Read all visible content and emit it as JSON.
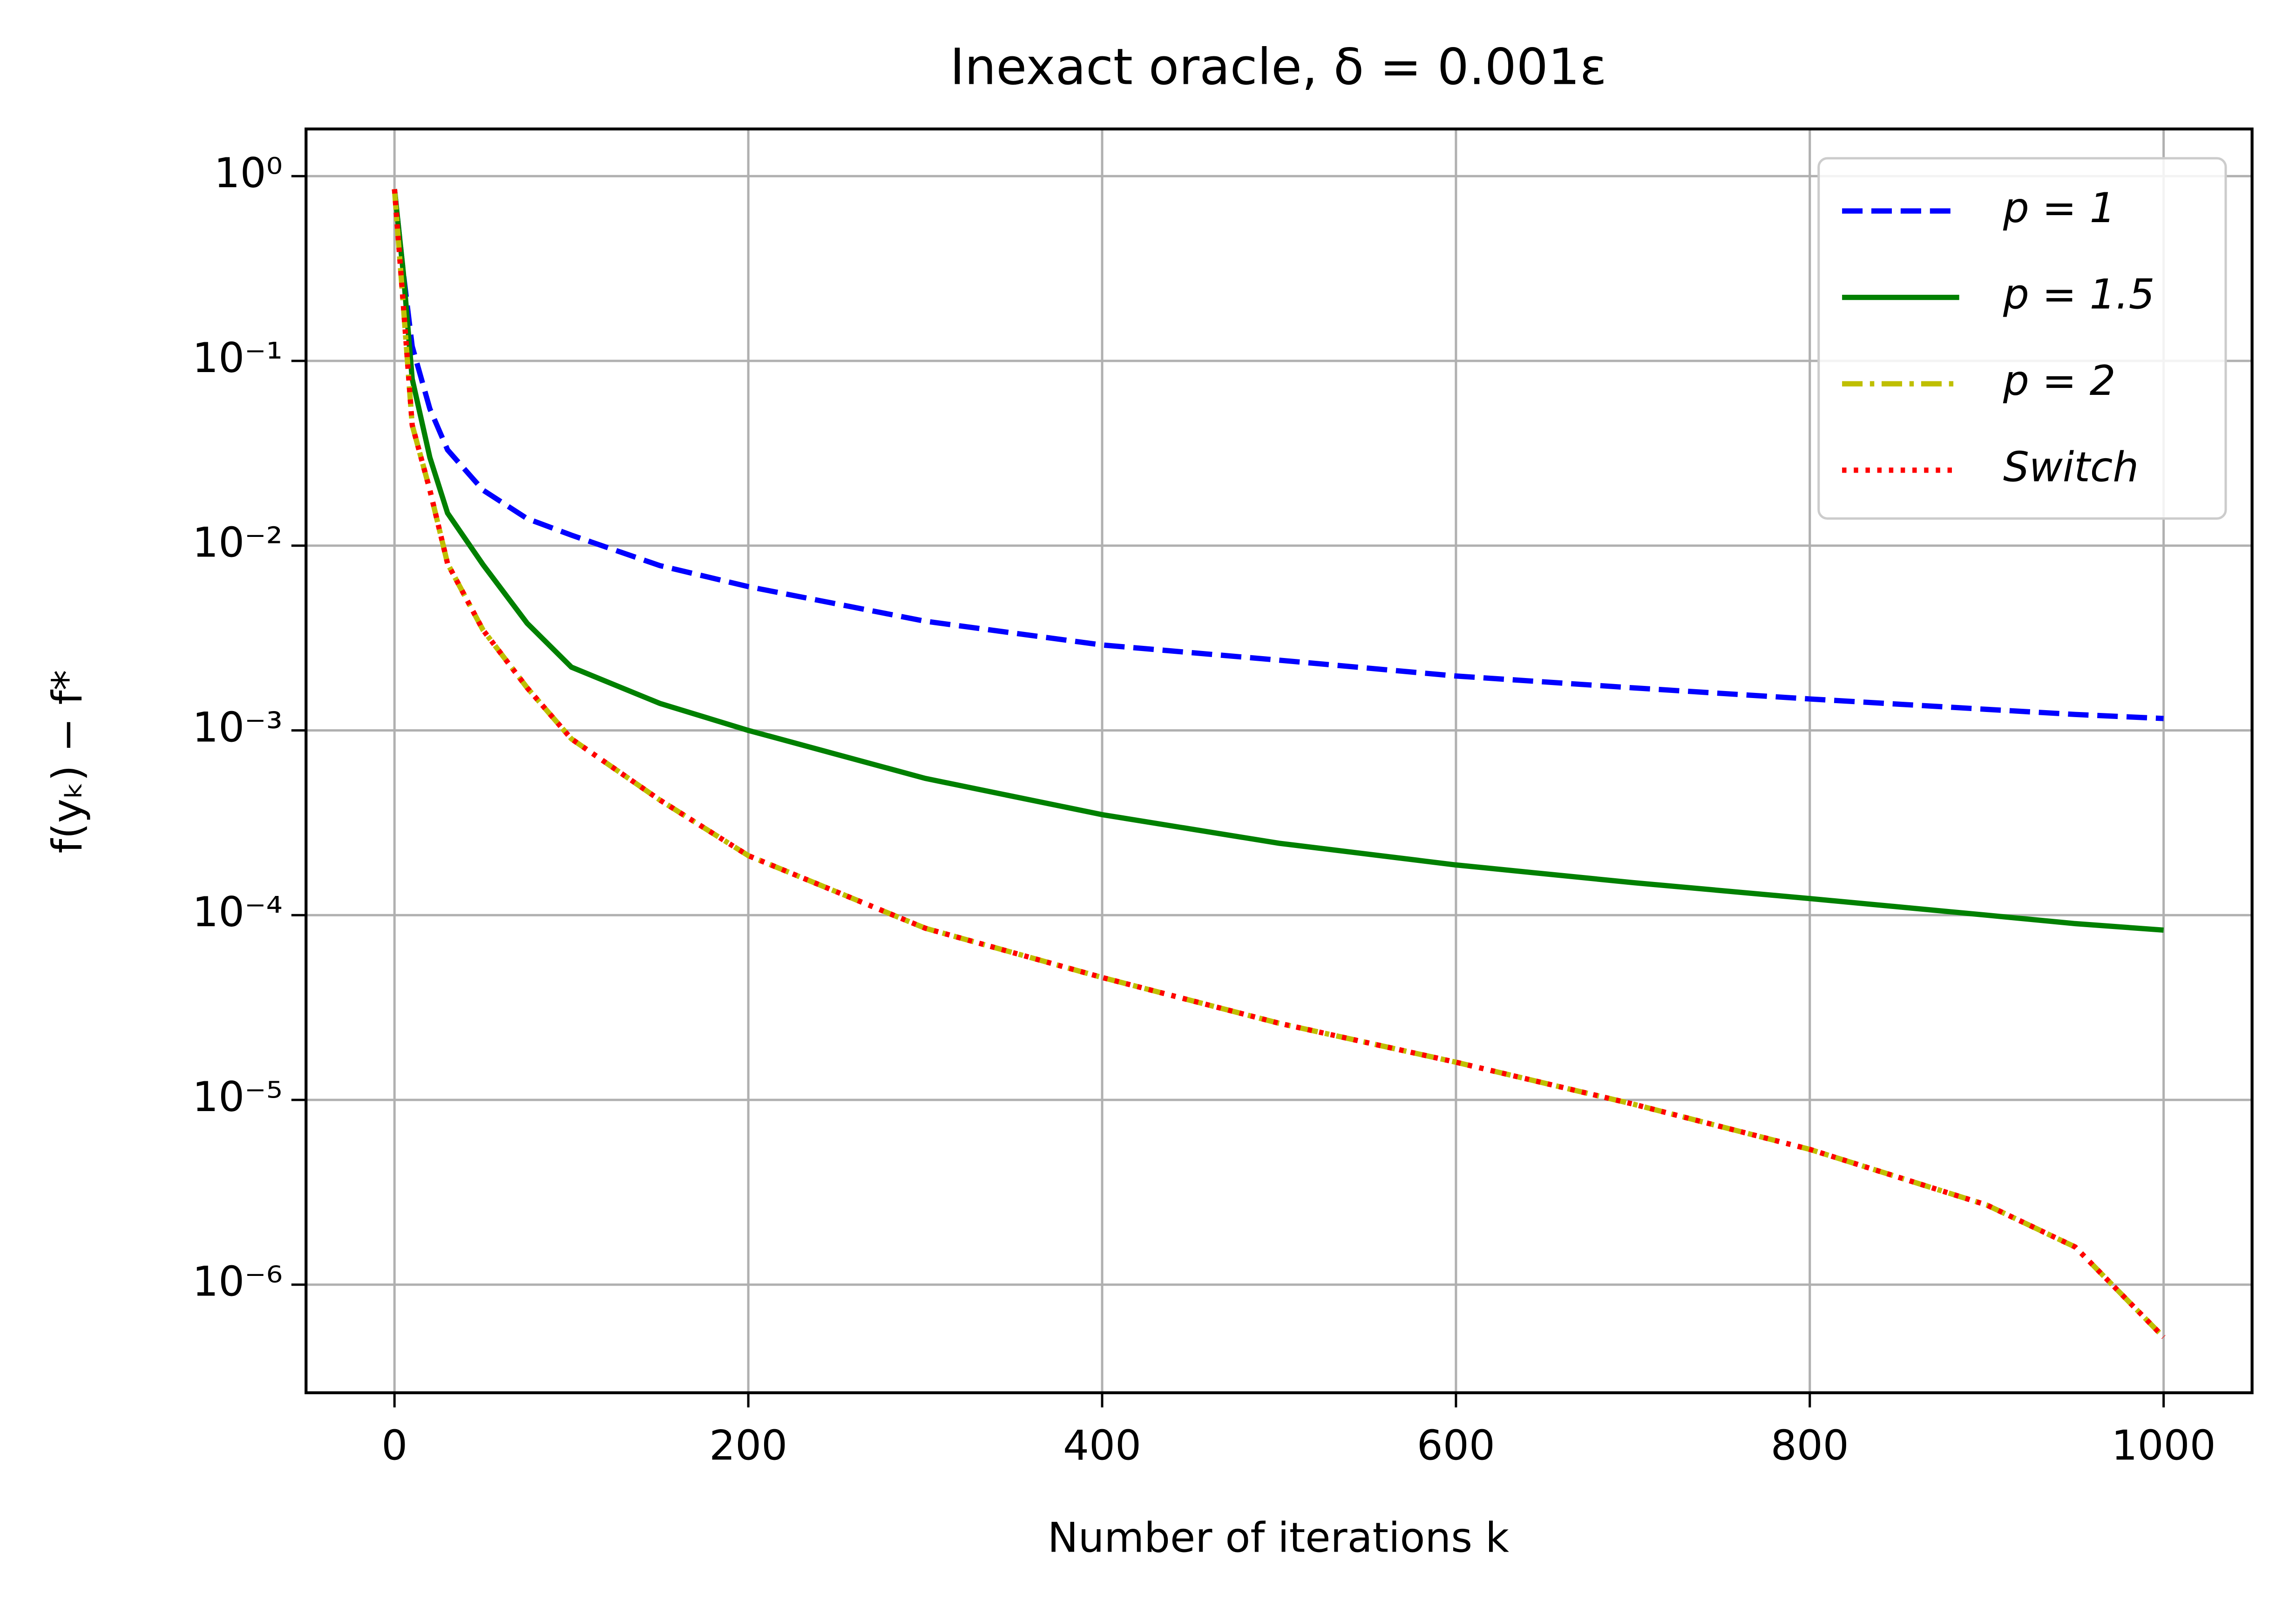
{
  "chart_data": {
    "type": "line",
    "title": "Inexact oracle, δ = 0.001ε",
    "xlabel": "Number of iterations k",
    "ylabel": "f(yₖ) − f*",
    "x": [
      0,
      5,
      10,
      20,
      30,
      50,
      75,
      100,
      150,
      200,
      300,
      400,
      500,
      600,
      700,
      800,
      900,
      950,
      1000
    ],
    "series": [
      {
        "name": "p = 1",
        "color": "#0000ff",
        "linestyle": "dashed",
        "values": [
          0.85,
          0.3,
          0.12,
          0.055,
          0.033,
          0.02,
          0.014,
          0.0114,
          0.0078,
          0.006,
          0.0039,
          0.0029,
          0.0024,
          0.00197,
          0.0017,
          0.00148,
          0.0013,
          0.00122,
          0.00116
        ]
      },
      {
        "name": "p = 1.5",
        "color": "#008000",
        "linestyle": "solid",
        "values": [
          0.85,
          0.3,
          0.08,
          0.03,
          0.015,
          0.0079,
          0.0038,
          0.0022,
          0.0014,
          0.001,
          0.00055,
          0.00035,
          0.000245,
          0.000187,
          0.00015,
          0.000123,
          0.0001,
          9e-05,
          8.3e-05
        ]
      },
      {
        "name": "p = 2",
        "color": "#bfbf00",
        "linestyle": "dashdot",
        "values": [
          0.85,
          0.2,
          0.045,
          0.02,
          0.008,
          0.0035,
          0.0017,
          0.0009,
          0.00042,
          0.00021,
          8.5e-05,
          4.6e-05,
          2.6e-05,
          1.6e-05,
          9.5e-06,
          5.4e-06,
          2.7e-06,
          1.6e-06,
          5.2e-07
        ]
      },
      {
        "name": "Switch",
        "color": "#ff0000",
        "linestyle": "dotted",
        "values": [
          0.85,
          0.2,
          0.045,
          0.02,
          0.008,
          0.0035,
          0.0017,
          0.0009,
          0.00042,
          0.00021,
          8.5e-05,
          4.6e-05,
          2.6e-05,
          1.6e-05,
          9.5e-06,
          5.4e-06,
          2.7e-06,
          1.6e-06,
          5.2e-07
        ]
      }
    ],
    "xlim": [
      -50,
      1050
    ],
    "xticks": [
      0,
      200,
      400,
      600,
      800,
      1000
    ],
    "ylim": [
      2.6e-07,
      1.8
    ],
    "ylog": true,
    "yticks": [
      {
        "value": 1,
        "label": "10⁰"
      },
      {
        "value": 0.1,
        "label": "10⁻¹"
      },
      {
        "value": 0.01,
        "label": "10⁻²"
      },
      {
        "value": 0.001,
        "label": "10⁻³"
      },
      {
        "value": 0.0001,
        "label": "10⁻⁴"
      },
      {
        "value": 1e-05,
        "label": "10⁻⁵"
      },
      {
        "value": 1e-06,
        "label": "10⁻⁶"
      }
    ],
    "grid": true,
    "legend": "upper right"
  }
}
